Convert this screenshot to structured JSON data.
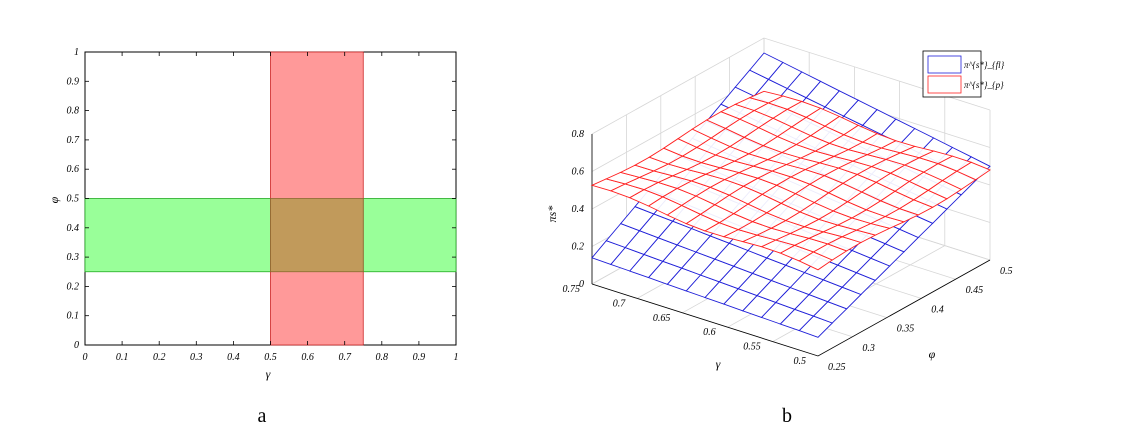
{
  "panel_labels": {
    "a": "a",
    "b": "b"
  },
  "chart_data": [
    {
      "type": "area",
      "panel": "a",
      "xlabel": "γ",
      "ylabel": "φ",
      "xlim": [
        0,
        1
      ],
      "ylim": [
        0,
        1
      ],
      "xticks": [
        "0",
        "0.1",
        "0.2",
        "0.3",
        "0.4",
        "0.5",
        "0.6",
        "0.7",
        "0.8",
        "0.9",
        "1"
      ],
      "yticks": [
        "0",
        "0.1",
        "0.2",
        "0.3",
        "0.4",
        "0.5",
        "0.6",
        "0.7",
        "0.8",
        "0.9",
        "1"
      ],
      "regions": [
        {
          "axis": "phi",
          "range": [
            0.25,
            0.5
          ],
          "color": "#99ff99"
        },
        {
          "axis": "gamma",
          "range": [
            0.5,
            0.75
          ],
          "color": "#ff9999"
        },
        {
          "axis": "overlap",
          "gamma": [
            0.5,
            0.75
          ],
          "phi": [
            0.25,
            0.5
          ],
          "color": "#c19a5b"
        }
      ]
    },
    {
      "type": "surface",
      "panel": "b",
      "xlabel": "γ",
      "ylabel": "φ",
      "zlabel": "πs*",
      "xlim": [
        0.5,
        0.75
      ],
      "ylim": [
        0.25,
        0.5
      ],
      "zlim": [
        0,
        0.8
      ],
      "xticks": [
        "0.75",
        "0.7",
        "0.65",
        "0.6",
        "0.55",
        "0.5"
      ],
      "yticks": [
        "0.25",
        "0.3",
        "0.35",
        "0.4",
        "0.45",
        "0.5"
      ],
      "zticks": [
        "0",
        "0.2",
        "0.4",
        "0.6",
        "0.8"
      ],
      "grid": true,
      "legend_position": "top-right",
      "series": [
        {
          "name": "π^{s*}_{fl}",
          "color": "#1f1fd8",
          "corners": {
            "g0.5_p0.25": 0.1,
            "g0.75_p0.25": 0.14,
            "g0.5_p0.5": 0.5,
            "g0.75_p0.5": 0.72
          }
        },
        {
          "name": "π^{s*}_{p}",
          "color": "#ff2020",
          "corners": {
            "g0.5_p0.25": 0.46,
            "g0.75_p0.25": 0.52,
            "g0.5_p0.5": 0.47,
            "g0.75_p0.5": 0.52
          }
        }
      ]
    }
  ]
}
